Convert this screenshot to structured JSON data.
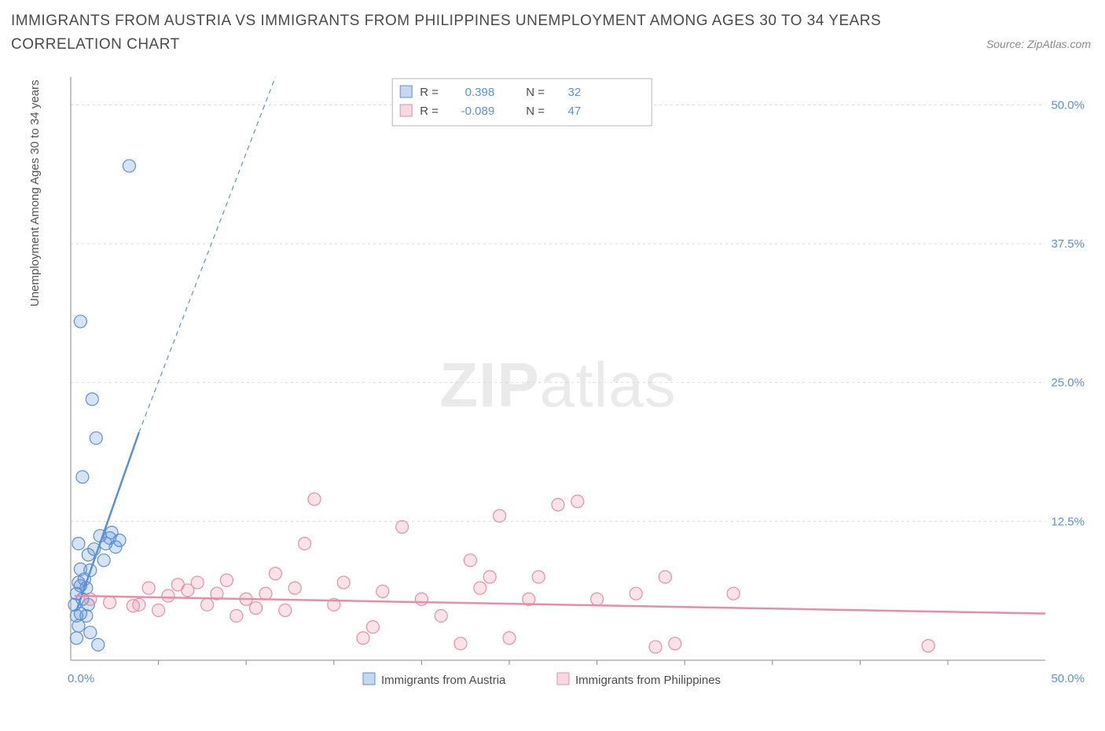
{
  "title": "IMMIGRANTS FROM AUSTRIA VS IMMIGRANTS FROM PHILIPPINES UNEMPLOYMENT AMONG AGES 30 TO 34 YEARS CORRELATION CHART",
  "source": "Source: ZipAtlas.com",
  "y_axis_title": "Unemployment Among Ages 30 to 34 years",
  "watermark_zip": "ZIP",
  "watermark_atlas": "atlas",
  "chart": {
    "type": "scatter",
    "background_color": "#ffffff",
    "grid_color": "#d9d9d9",
    "grid_dash": "3,4",
    "axis_color": "#8a8a8a",
    "xlim": [
      0,
      50
    ],
    "ylim": [
      0,
      52.5
    ],
    "x_label_min": "0.0%",
    "x_label_max": "50.0%",
    "y_ticks": [
      12.5,
      25.0,
      37.5,
      50.0
    ],
    "y_tick_labels": [
      "12.5%",
      "25.0%",
      "37.5%",
      "50.0%"
    ],
    "y_tick_color": "#5b8fd6",
    "y_tick_fontsize": 15,
    "x_label_color": "#5b8fd6",
    "x_label_fontsize": 15,
    "x_minor_ticks": [
      4.5,
      9,
      13.5,
      18,
      22.5,
      27,
      31.5,
      36,
      40.5,
      45
    ],
    "marker_radius": 8,
    "marker_stroke_width": 1.2,
    "marker_fill_opacity": 0.25,
    "series": [
      {
        "key": "austria",
        "label": "Immigrants from Austria",
        "color": "#5b8fd6",
        "r_label": "R =",
        "r_value": "0.398",
        "n_label": "N =",
        "n_value": "32",
        "trend": {
          "x1": 0.3,
          "y1": 4.5,
          "x2": 3.5,
          "y2": 20.5,
          "stroke_width": 2.5,
          "x2_ext": 10.5,
          "y2_ext": 55
        },
        "points": [
          [
            0.2,
            5.0
          ],
          [
            0.3,
            6.0
          ],
          [
            0.5,
            4.2
          ],
          [
            0.4,
            3.1
          ],
          [
            0.6,
            5.5
          ],
          [
            0.8,
            6.5
          ],
          [
            0.3,
            2.0
          ],
          [
            0.7,
            7.3
          ],
          [
            1.0,
            8.1
          ],
          [
            1.2,
            10.0
          ],
          [
            1.5,
            11.2
          ],
          [
            1.8,
            10.5
          ],
          [
            2.0,
            11.0
          ],
          [
            2.3,
            10.2
          ],
          [
            0.4,
            7.0
          ],
          [
            0.9,
            5.0
          ],
          [
            0.5,
            6.7
          ],
          [
            1.1,
            23.5
          ],
          [
            0.5,
            30.5
          ],
          [
            1.3,
            20.0
          ],
          [
            0.6,
            16.5
          ],
          [
            1.0,
            2.5
          ],
          [
            1.4,
            1.4
          ],
          [
            1.7,
            9.0
          ],
          [
            2.5,
            10.8
          ],
          [
            0.8,
            4.0
          ],
          [
            2.1,
            11.5
          ],
          [
            0.5,
            8.2
          ],
          [
            3.0,
            44.5
          ],
          [
            0.4,
            10.5
          ],
          [
            0.9,
            9.5
          ],
          [
            0.3,
            4.0
          ]
        ]
      },
      {
        "key": "philippines",
        "label": "Immigrants from Philippines",
        "color": "#e58fa6",
        "r_label": "R =",
        "r_value": "-0.089",
        "n_label": "N =",
        "n_value": "47",
        "trend": {
          "x1": 0.2,
          "y1": 5.8,
          "x2": 50.0,
          "y2": 4.2,
          "stroke_width": 2.5
        },
        "points": [
          [
            1.0,
            5.5
          ],
          [
            2.0,
            5.2
          ],
          [
            3.2,
            4.9
          ],
          [
            4.0,
            6.5
          ],
          [
            4.5,
            4.5
          ],
          [
            5.0,
            5.8
          ],
          [
            5.5,
            6.8
          ],
          [
            6.0,
            6.3
          ],
          [
            6.5,
            7.0
          ],
          [
            7.0,
            5.0
          ],
          [
            8.0,
            7.2
          ],
          [
            8.5,
            4.0
          ],
          [
            9.0,
            5.5
          ],
          [
            10.0,
            6.0
          ],
          [
            10.5,
            7.8
          ],
          [
            11.0,
            4.5
          ],
          [
            11.5,
            6.5
          ],
          [
            12.0,
            10.5
          ],
          [
            12.5,
            14.5
          ],
          [
            13.5,
            5.0
          ],
          [
            14.0,
            7.0
          ],
          [
            15.0,
            2.0
          ],
          [
            15.5,
            3.0
          ],
          [
            17.0,
            12.0
          ],
          [
            18.0,
            5.5
          ],
          [
            19.0,
            4.0
          ],
          [
            20.0,
            1.5
          ],
          [
            20.5,
            9.0
          ],
          [
            21.0,
            6.5
          ],
          [
            21.5,
            7.5
          ],
          [
            22.0,
            13.0
          ],
          [
            22.5,
            2.0
          ],
          [
            23.5,
            5.5
          ],
          [
            24.0,
            7.5
          ],
          [
            25.0,
            14.0
          ],
          [
            26.0,
            14.3
          ],
          [
            27.0,
            5.5
          ],
          [
            29.0,
            6.0
          ],
          [
            30.0,
            1.2
          ],
          [
            30.5,
            7.5
          ],
          [
            31.0,
            1.5
          ],
          [
            34.0,
            6.0
          ],
          [
            44.0,
            1.3
          ],
          [
            3.5,
            5.0
          ],
          [
            7.5,
            6.0
          ],
          [
            9.5,
            4.7
          ],
          [
            16.0,
            6.2
          ]
        ]
      }
    ],
    "legend_box": {
      "border_color": "#b5b5b5",
      "background": "#ffffff",
      "swatch_size": 15,
      "label_color": "#4a4a4a",
      "value_color": "#5b8fd6",
      "fontsize": 15
    },
    "bottom_legend": {
      "swatch_size": 15,
      "fontsize": 15,
      "label_color": "#4a4a4a"
    }
  }
}
